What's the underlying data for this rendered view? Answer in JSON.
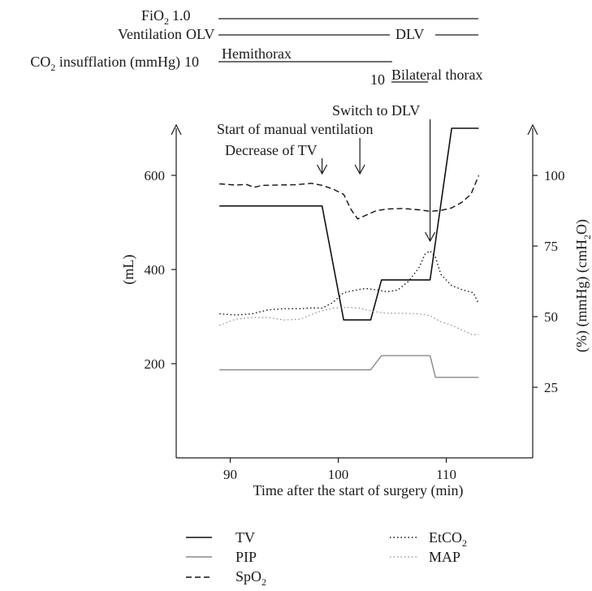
{
  "header": {
    "fio2": {
      "label": "FiO",
      "sub": "2",
      "value": "1.0"
    },
    "ventilation": {
      "label": "Ventilation",
      "mode_start": "OLV",
      "mode_end": "DLV"
    },
    "co2": {
      "label_pre": "CO",
      "sub": "2",
      "label_post": " insufflation (mmHg)",
      "value1": "10",
      "site1": "Hemithorax",
      "value2": "10",
      "site2": "Bilateral thorax"
    }
  },
  "annotations": {
    "decrease_tv": "Decrease of TV",
    "manual_vent": "Start of manual ventilation",
    "switch_dlv": "Switch to DLV"
  },
  "chart_data": {
    "type": "line",
    "xlabel": "Time after the start of surgery (min)",
    "ylabel_left": "(mL)",
    "ylabel_right": {
      "pre": "(%) (mmHg) (cmH",
      "sub": "2",
      "post": "O)"
    },
    "xlim": [
      85,
      118
    ],
    "ylim_left": [
      0,
      700
    ],
    "ylim_right": [
      0,
      116.7
    ],
    "x_ticks": [
      90,
      100,
      110
    ],
    "y_ticks_left": [
      200,
      400,
      600
    ],
    "y_ticks_right": [
      25,
      50,
      75,
      100
    ],
    "annotation_x": [
      98.5,
      102,
      108.5
    ],
    "series": [
      {
        "name": "TV",
        "axis": "left",
        "style": "solid-black",
        "points": [
          [
            89,
            535
          ],
          [
            98.5,
            535
          ],
          [
            100.5,
            293
          ],
          [
            103,
            293
          ],
          [
            104,
            378
          ],
          [
            108.5,
            378
          ],
          [
            110.5,
            700
          ],
          [
            113,
            700
          ]
        ]
      },
      {
        "name": "PIP",
        "axis": "left",
        "style": "solid-gray",
        "points": [
          [
            89,
            187
          ],
          [
            103,
            187
          ],
          [
            104,
            217
          ],
          [
            108.5,
            217
          ],
          [
            109,
            171
          ],
          [
            113,
            171
          ]
        ]
      },
      {
        "name": "SpO",
        "sub": "2",
        "axis": "right",
        "style": "dashed",
        "points": [
          [
            89,
            97
          ],
          [
            90.5,
            96.6
          ],
          [
            91.5,
            96.8
          ],
          [
            92.2,
            95.8
          ],
          [
            93,
            96.5
          ],
          [
            94.5,
            96.6
          ],
          [
            96,
            96.7
          ],
          [
            97.5,
            97.2
          ],
          [
            98.5,
            96.5
          ],
          [
            99.5,
            95.2
          ],
          [
            100.5,
            93.3
          ],
          [
            101.2,
            87.8
          ],
          [
            101.8,
            84.6
          ],
          [
            102.5,
            85.8
          ],
          [
            103.5,
            87.5
          ],
          [
            104.5,
            88.1
          ],
          [
            106,
            88.3
          ],
          [
            107.5,
            87.8
          ],
          [
            108.5,
            87.3
          ],
          [
            109.5,
            87.6
          ],
          [
            110.5,
            88.5
          ],
          [
            111.5,
            90.6
          ],
          [
            112.3,
            93.5
          ],
          [
            113,
            100
          ]
        ]
      },
      {
        "name": "EtCO",
        "sub": "2",
        "axis": "right",
        "style": "dotted-black",
        "points": [
          [
            89,
            51
          ],
          [
            90.5,
            50.6
          ],
          [
            92,
            51
          ],
          [
            93.5,
            52.4
          ],
          [
            95,
            52.8
          ],
          [
            96.5,
            52.8
          ],
          [
            97.5,
            53.1
          ],
          [
            98.5,
            53
          ],
          [
            99.5,
            55
          ],
          [
            100.5,
            58.5
          ],
          [
            101.5,
            59.3
          ],
          [
            102.5,
            60
          ],
          [
            103.5,
            59.5
          ],
          [
            104.5,
            58.8
          ],
          [
            105.5,
            59.4
          ],
          [
            106.5,
            62.5
          ],
          [
            107.5,
            67.5
          ],
          [
            108,
            72
          ],
          [
            108.5,
            73.3
          ],
          [
            109,
            71
          ],
          [
            109.5,
            65
          ],
          [
            110.5,
            61
          ],
          [
            111.5,
            59.5
          ],
          [
            112.5,
            58.5
          ],
          [
            113,
            54.5
          ]
        ]
      },
      {
        "name": "MAP",
        "axis": "right",
        "style": "dotted-gray",
        "points": [
          [
            89,
            46.9
          ],
          [
            90.5,
            49.1
          ],
          [
            92,
            49.7
          ],
          [
            93.5,
            49.7
          ],
          [
            95,
            48.8
          ],
          [
            96.5,
            49.1
          ],
          [
            98,
            51.5
          ],
          [
            99.5,
            53
          ],
          [
            101,
            53.3
          ],
          [
            102,
            53
          ],
          [
            103,
            52
          ],
          [
            104.5,
            51.2
          ],
          [
            106,
            51.2
          ],
          [
            107.5,
            51
          ],
          [
            108.5,
            50.3
          ],
          [
            109.5,
            48.2
          ],
          [
            110.5,
            46.9
          ],
          [
            111.5,
            45.2
          ],
          [
            112.3,
            43.7
          ],
          [
            113,
            43.7
          ]
        ]
      }
    ]
  }
}
